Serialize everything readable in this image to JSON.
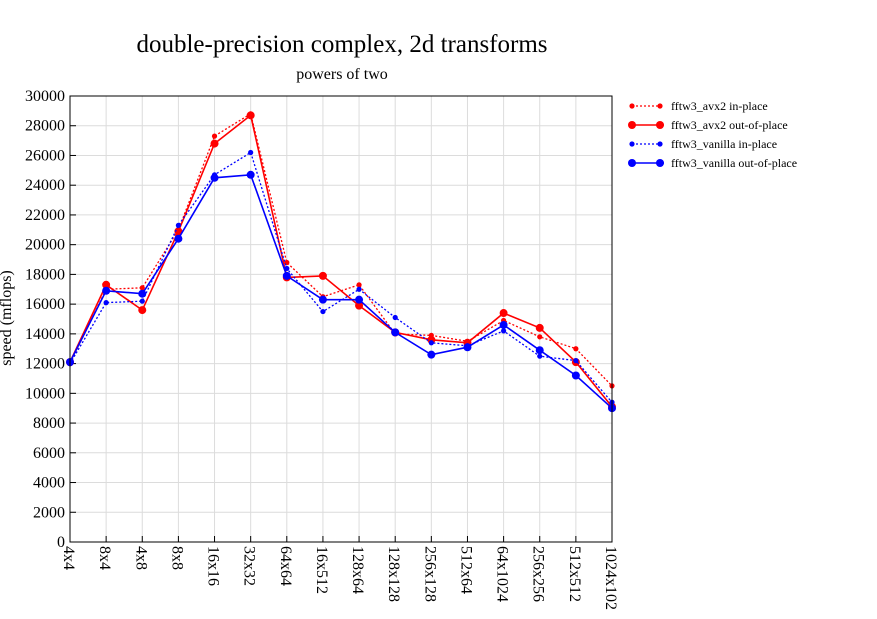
{
  "chart_data": {
    "type": "line",
    "title": "double-precision complex, 2d transforms",
    "subtitle": "powers of two",
    "ylabel": "speed (mflops)",
    "xlabel": "",
    "ylim": [
      0,
      30000
    ],
    "yticks": [
      0,
      2000,
      4000,
      6000,
      8000,
      10000,
      12000,
      14000,
      16000,
      18000,
      20000,
      22000,
      24000,
      26000,
      28000,
      30000
    ],
    "grid": true,
    "legend_position": "top-right",
    "categories": [
      "4x4",
      "8x4",
      "4x8",
      "8x8",
      "16x16",
      "32x32",
      "64x64",
      "16x512",
      "128x64",
      "128x128",
      "256x128",
      "512x64",
      "64x1024",
      "256x256",
      "512x512",
      "1024x102"
    ],
    "series": [
      {
        "name": "fftw3_avx2 in-place",
        "color": "#ff0000",
        "style": "dotted",
        "marker": "small",
        "values": [
          12000,
          17000,
          17100,
          21000,
          27300,
          28800,
          18800,
          16500,
          17300,
          14000,
          13900,
          13500,
          14900,
          13800,
          13000,
          10500
        ]
      },
      {
        "name": "fftw3_avx2 out-of-place",
        "color": "#ff0000",
        "style": "solid",
        "marker": "large",
        "values": [
          12100,
          17300,
          15600,
          20900,
          26800,
          28700,
          17800,
          17900,
          15900,
          14100,
          13600,
          13400,
          15400,
          14400,
          12100,
          9100
        ]
      },
      {
        "name": "fftw3_vanilla in-place",
        "color": "#0000ff",
        "style": "dotted",
        "marker": "small",
        "values": [
          12000,
          16100,
          16200,
          21300,
          24700,
          26200,
          18400,
          15500,
          17000,
          15100,
          13400,
          13200,
          14200,
          12500,
          12200,
          9400
        ]
      },
      {
        "name": "fftw3_vanilla out-of-place",
        "color": "#0000ff",
        "style": "solid",
        "marker": "large",
        "values": [
          12100,
          16900,
          16700,
          20400,
          24500,
          24700,
          17900,
          16300,
          16300,
          14100,
          12600,
          13100,
          14600,
          12900,
          11200,
          9000
        ]
      }
    ]
  }
}
